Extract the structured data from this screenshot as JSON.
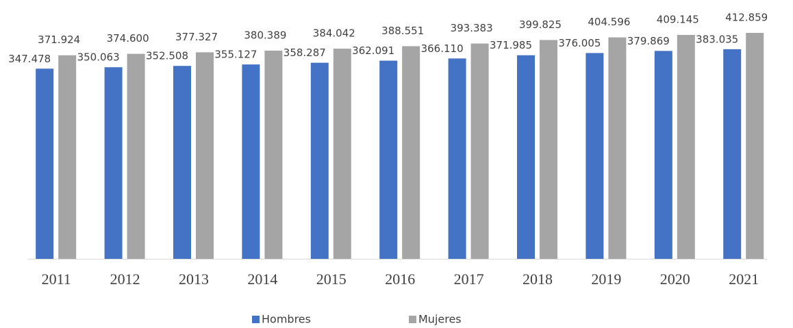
{
  "chart_data": {
    "type": "bar",
    "categories": [
      "2011",
      "2012",
      "2013",
      "2014",
      "2015",
      "2016",
      "2017",
      "2018",
      "2019",
      "2020",
      "2021"
    ],
    "series": [
      {
        "name": "Hombres",
        "color": "#4472c4",
        "values": [
          347478,
          350063,
          352508,
          355127,
          358287,
          362091,
          366110,
          371985,
          376005,
          379869,
          383035
        ],
        "value_labels": [
          "347.478",
          "350.063",
          "352.508",
          "355.127",
          "358.287",
          "362.091",
          "366.110",
          "371.985",
          "376.005",
          "379.869",
          "383.035"
        ]
      },
      {
        "name": "Mujeres",
        "color": "#a5a5a5",
        "values": [
          371924,
          374600,
          377327,
          380389,
          384042,
          388551,
          393383,
          399825,
          404596,
          409145,
          412859
        ],
        "value_labels": [
          "371.924",
          "374.600",
          "377.327",
          "380.389",
          "384.042",
          "388.551",
          "393.383",
          "399.825",
          "404.596",
          "409.145",
          "412.859"
        ]
      }
    ]
  }
}
